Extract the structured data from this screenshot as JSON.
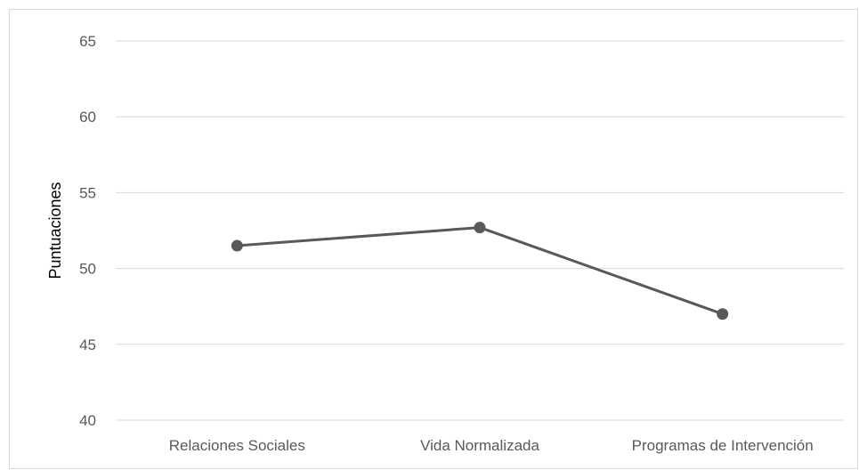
{
  "chart_data": {
    "type": "line",
    "title": "",
    "xlabel": "",
    "ylabel": "Puntuaciones",
    "categories": [
      "Relaciones Sociales",
      "Vida Normalizada",
      "Programas de Intervención"
    ],
    "series": [
      {
        "values": [
          51.5,
          52.7,
          47.0
        ],
        "color": "#595959"
      }
    ],
    "ylim": [
      40,
      65
    ],
    "yticks": [
      40,
      45,
      50,
      55,
      60,
      65
    ],
    "grid": true,
    "legend": "none"
  }
}
